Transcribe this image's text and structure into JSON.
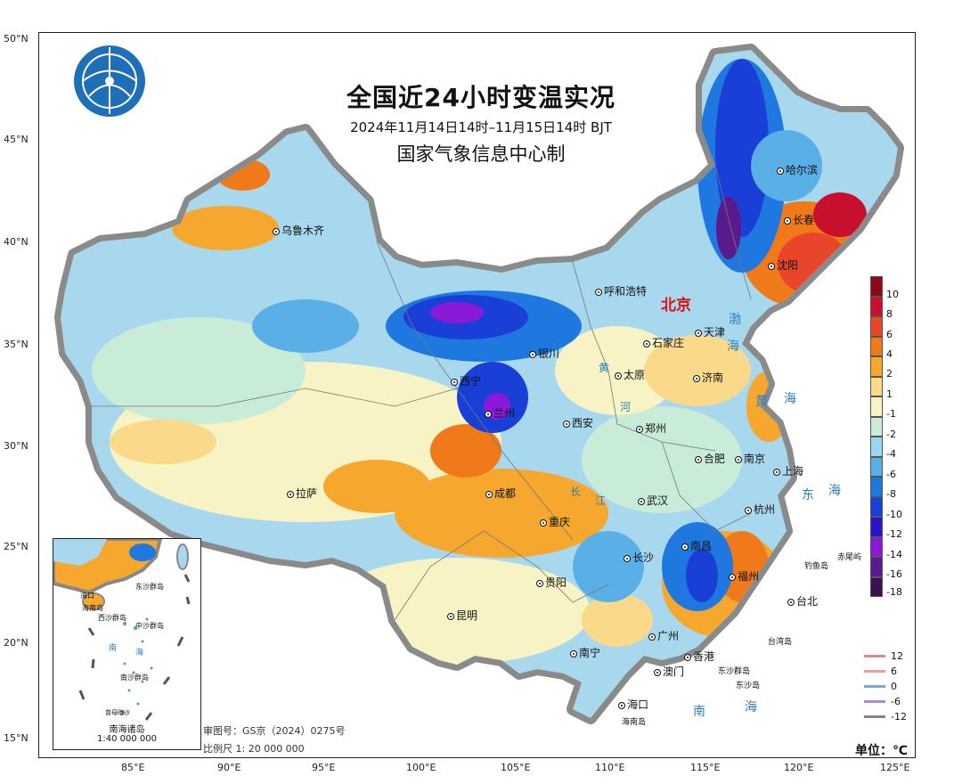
{
  "title": {
    "main": "全国近24小时变温实况",
    "date": "2024年11月14日14时–11月15日14时  BJT",
    "org": "国家气象信息中心制"
  },
  "axes": {
    "lat_labels": [
      "50°N",
      "45°N",
      "40°N",
      "35°N",
      "30°N",
      "25°N",
      "20°N",
      "15°N"
    ],
    "lon_labels": [
      "85°E",
      "90°E",
      "95°E",
      "100°E",
      "105°E",
      "110°E",
      "115°E",
      "120°E",
      "125°E"
    ]
  },
  "capital": "北京",
  "cities": [
    {
      "name": "乌鲁木齐"
    },
    {
      "name": "哈尔滨"
    },
    {
      "name": "长春"
    },
    {
      "name": "沈阳"
    },
    {
      "name": "呼和浩特"
    },
    {
      "name": "天津"
    },
    {
      "name": "石家庄"
    },
    {
      "name": "银川"
    },
    {
      "name": "太原"
    },
    {
      "name": "济南"
    },
    {
      "name": "西宁"
    },
    {
      "name": "兰州"
    },
    {
      "name": "西安"
    },
    {
      "name": "郑州"
    },
    {
      "name": "合肥"
    },
    {
      "name": "南京"
    },
    {
      "name": "上海"
    },
    {
      "name": "拉萨"
    },
    {
      "name": "成都"
    },
    {
      "name": "武汉"
    },
    {
      "name": "杭州"
    },
    {
      "name": "重庆"
    },
    {
      "name": "长沙"
    },
    {
      "name": "南昌"
    },
    {
      "name": "福州"
    },
    {
      "name": "贵阳"
    },
    {
      "name": "台北"
    },
    {
      "name": "昆明"
    },
    {
      "name": "广州"
    },
    {
      "name": "香港"
    },
    {
      "name": "澳门"
    },
    {
      "name": "南宁"
    },
    {
      "name": "海口"
    }
  ],
  "islands": {
    "diaoyu": "钓鱼岛",
    "chiwei": "赤尾屿",
    "taiwan": "台湾岛",
    "dongsha": "东沙群岛",
    "dongsha2": "东沙岛",
    "hainan": "海南岛"
  },
  "seas": {
    "bohai": [
      "渤",
      "海"
    ],
    "huanghai": [
      "黄",
      "海"
    ],
    "donghai": [
      "东",
      "海"
    ],
    "nanhai": [
      "南",
      "海"
    ]
  },
  "rivers": [
    "黄",
    "河",
    "长",
    "江"
  ],
  "colorbar": {
    "labels": [
      "10",
      "8",
      "6",
      "4",
      "2",
      "1",
      "-1",
      "-2",
      "-4",
      "-6",
      "-8",
      "-10",
      "-12",
      "-14",
      "-16",
      "-18"
    ],
    "colors": [
      "#8b0a1a",
      "#c8102e",
      "#e8452a",
      "#f07a1a",
      "#f5a72e",
      "#fbd98a",
      "#f7f3c4",
      "#c8ecd8",
      "#9dd4ee",
      "#5ab0e6",
      "#1f78e0",
      "#1a3fd6",
      "#2a14c8",
      "#8a1ad8",
      "#5a1a8e",
      "#3a124e",
      "#2a0a10"
    ]
  },
  "line_legend": [
    {
      "label": "12",
      "color": "#d98a8a"
    },
    {
      "label": "6",
      "color": "#e6a0a0"
    },
    {
      "label": "0",
      "color": "#7aa8e6"
    },
    {
      "label": "-6",
      "color": "#a58ad8"
    },
    {
      "label": "-12",
      "color": "#9a7a8a"
    }
  ],
  "inset": {
    "title": "南海诸岛",
    "scale": "1:40 000 000",
    "labels": [
      "海口",
      "海南岛",
      "西沙群岛",
      "中沙群岛",
      "东沙群岛",
      "南",
      "海",
      "南沙群岛",
      "曾母暗沙"
    ]
  },
  "footer": {
    "review": "审图号：GS京（2024）0275号",
    "scale": "比例尺 1: 20 000 000",
    "unit": "单位：℃"
  }
}
